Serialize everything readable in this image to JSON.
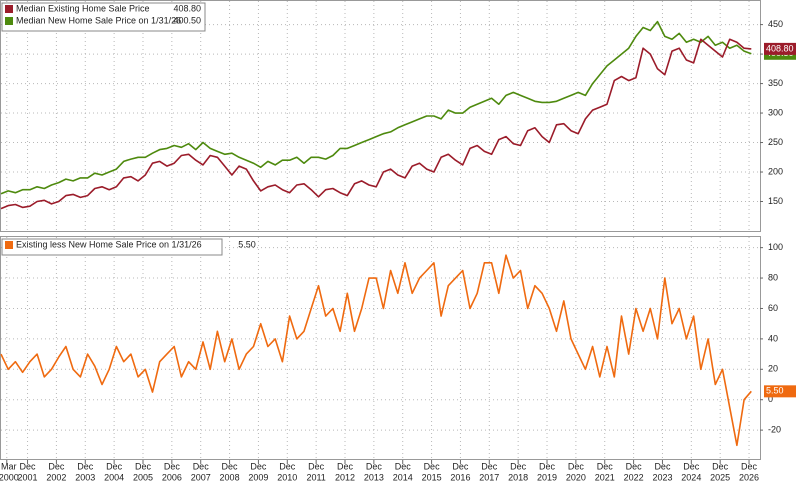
{
  "chart_data": [
    {
      "type": "line",
      "xlim": [
        2000,
        2026.3
      ],
      "ylim": [
        100,
        490
      ],
      "yticks": [
        150,
        200,
        250,
        300,
        350,
        400,
        450
      ],
      "grid": true,
      "x": [
        2000,
        2000.25,
        2000.5,
        2000.75,
        2001,
        2001.25,
        2001.5,
        2001.75,
        2002,
        2002.25,
        2002.5,
        2002.75,
        2003,
        2003.25,
        2003.5,
        2003.75,
        2004,
        2004.25,
        2004.5,
        2004.75,
        2005,
        2005.25,
        2005.5,
        2005.75,
        2006,
        2006.25,
        2006.5,
        2006.75,
        2007,
        2007.25,
        2007.5,
        2007.75,
        2008,
        2008.25,
        2008.5,
        2008.75,
        2009,
        2009.25,
        2009.5,
        2009.75,
        2010,
        2010.25,
        2010.5,
        2010.75,
        2011,
        2011.25,
        2011.5,
        2011.75,
        2012,
        2012.25,
        2012.5,
        2012.75,
        2013,
        2013.25,
        2013.5,
        2013.75,
        2014,
        2014.25,
        2014.5,
        2014.75,
        2015,
        2015.25,
        2015.5,
        2015.75,
        2016,
        2016.25,
        2016.5,
        2016.75,
        2017,
        2017.25,
        2017.5,
        2017.75,
        2018,
        2018.25,
        2018.5,
        2018.75,
        2019,
        2019.25,
        2019.5,
        2019.75,
        2020,
        2020.25,
        2020.5,
        2020.75,
        2021,
        2021.25,
        2021.5,
        2021.75,
        2022,
        2022.25,
        2022.5,
        2022.75,
        2023,
        2023.25,
        2023.5,
        2023.75,
        2024,
        2024.25,
        2024.5,
        2024.75,
        2025,
        2025.25,
        2025.5,
        2025.75,
        2026
      ],
      "series": [
        {
          "name": "Median New Home Sale Price on 1/31/26",
          "last_label": "400.50",
          "color": "#4e8a0e",
          "values": [
            163,
            168,
            165,
            170,
            170,
            175,
            172,
            178,
            182,
            188,
            185,
            190,
            190,
            198,
            195,
            200,
            205,
            218,
            222,
            225,
            225,
            232,
            238,
            240,
            245,
            242,
            248,
            238,
            250,
            240,
            235,
            230,
            232,
            225,
            220,
            215,
            208,
            218,
            212,
            220,
            220,
            225,
            215,
            225,
            225,
            222,
            228,
            240,
            240,
            245,
            250,
            255,
            260,
            265,
            268,
            275,
            280,
            285,
            290,
            295,
            295,
            290,
            305,
            300,
            300,
            310,
            315,
            320,
            325,
            315,
            330,
            335,
            330,
            325,
            320,
            318,
            318,
            320,
            325,
            330,
            335,
            330,
            350,
            365,
            380,
            390,
            400,
            410,
            430,
            445,
            440,
            455,
            430,
            425,
            435,
            420,
            425,
            420,
            430,
            415,
            420,
            410,
            415,
            405,
            400.5
          ]
        },
        {
          "name": "Median Existing Home Sale Price",
          "last_label": "408.80",
          "color": "#9b1c2a",
          "values": [
            138,
            143,
            145,
            140,
            142,
            150,
            152,
            146,
            150,
            160,
            162,
            157,
            160,
            172,
            175,
            170,
            175,
            190,
            192,
            185,
            195,
            215,
            218,
            210,
            215,
            228,
            230,
            220,
            212,
            228,
            225,
            210,
            195,
            210,
            205,
            185,
            168,
            175,
            178,
            170,
            165,
            178,
            180,
            170,
            158,
            170,
            172,
            165,
            160,
            180,
            185,
            178,
            175,
            200,
            205,
            195,
            190,
            210,
            215,
            205,
            200,
            225,
            230,
            220,
            212,
            240,
            245,
            235,
            230,
            255,
            260,
            248,
            245,
            270,
            275,
            260,
            250,
            280,
            282,
            270,
            265,
            290,
            305,
            310,
            315,
            355,
            362,
            355,
            360,
            410,
            400,
            375,
            365,
            405,
            410,
            390,
            385,
            425,
            415,
            405,
            395,
            425,
            420,
            410,
            408.8
          ]
        }
      ]
    },
    {
      "type": "line",
      "xlim": [
        2000,
        2026.3
      ],
      "ylim": [
        -39,
        107
      ],
      "yticks": [
        -20,
        0,
        20,
        40,
        60,
        80,
        100
      ],
      "grid": true,
      "xticks": [
        {
          "value": 2000.2,
          "label": "Mar",
          "year": "2000"
        },
        {
          "value": 2000.92,
          "label": "Dec",
          "year": "2001"
        },
        {
          "value": 2001.92,
          "label": "Dec",
          "year": "2002"
        },
        {
          "value": 2002.92,
          "label": "Dec",
          "year": "2003"
        },
        {
          "value": 2003.92,
          "label": "Dec",
          "year": "2004"
        },
        {
          "value": 2004.92,
          "label": "Dec",
          "year": "2005"
        },
        {
          "value": 2005.92,
          "label": "Dec",
          "year": "2006"
        },
        {
          "value": 2006.92,
          "label": "Dec",
          "year": "2007"
        },
        {
          "value": 2007.92,
          "label": "Dec",
          "year": "2008"
        },
        {
          "value": 2008.92,
          "label": "Dec",
          "year": "2009"
        },
        {
          "value": 2009.92,
          "label": "Dec",
          "year": "2010"
        },
        {
          "value": 2010.92,
          "label": "Dec",
          "year": "2011"
        },
        {
          "value": 2011.92,
          "label": "Dec",
          "year": "2012"
        },
        {
          "value": 2012.92,
          "label": "Dec",
          "year": "2013"
        },
        {
          "value": 2013.92,
          "label": "Dec",
          "year": "2014"
        },
        {
          "value": 2014.92,
          "label": "Dec",
          "year": "2015"
        },
        {
          "value": 2015.92,
          "label": "Dec",
          "year": "2016"
        },
        {
          "value": 2016.92,
          "label": "Dec",
          "year": "2017"
        },
        {
          "value": 2017.92,
          "label": "Dec",
          "year": "2018"
        },
        {
          "value": 2018.92,
          "label": "Dec",
          "year": "2019"
        },
        {
          "value": 2019.92,
          "label": "Dec",
          "year": "2020"
        },
        {
          "value": 2020.92,
          "label": "Dec",
          "year": "2021"
        },
        {
          "value": 2021.92,
          "label": "Dec",
          "year": "2022"
        },
        {
          "value": 2022.92,
          "label": "Dec",
          "year": "2023"
        },
        {
          "value": 2023.92,
          "label": "Dec",
          "year": "2024"
        },
        {
          "value": 2024.92,
          "label": "Dec",
          "year": "2025"
        },
        {
          "value": 2025.92,
          "label": "Dec",
          "year": "2026"
        }
      ],
      "x": [
        2000,
        2000.25,
        2000.5,
        2000.75,
        2001,
        2001.25,
        2001.5,
        2001.75,
        2002,
        2002.25,
        2002.5,
        2002.75,
        2003,
        2003.25,
        2003.5,
        2003.75,
        2004,
        2004.25,
        2004.5,
        2004.75,
        2005,
        2005.25,
        2005.5,
        2005.75,
        2006,
        2006.25,
        2006.5,
        2006.75,
        2007,
        2007.25,
        2007.5,
        2007.75,
        2008,
        2008.25,
        2008.5,
        2008.75,
        2009,
        2009.25,
        2009.5,
        2009.75,
        2010,
        2010.25,
        2010.5,
        2010.75,
        2011,
        2011.25,
        2011.5,
        2011.75,
        2012,
        2012.25,
        2012.5,
        2012.75,
        2013,
        2013.25,
        2013.5,
        2013.75,
        2014,
        2014.25,
        2014.5,
        2014.75,
        2015,
        2015.25,
        2015.5,
        2015.75,
        2016,
        2016.25,
        2016.5,
        2016.75,
        2017,
        2017.25,
        2017.5,
        2017.75,
        2018,
        2018.25,
        2018.5,
        2018.75,
        2019,
        2019.25,
        2019.5,
        2019.75,
        2020,
        2020.25,
        2020.5,
        2020.75,
        2021,
        2021.25,
        2021.5,
        2021.75,
        2022,
        2022.25,
        2022.5,
        2022.75,
        2023,
        2023.25,
        2023.5,
        2023.75,
        2024,
        2024.25,
        2024.5,
        2024.75,
        2025,
        2025.25,
        2025.5,
        2025.75,
        2026
      ],
      "series": [
        {
          "name": "Existing less New Home Sale Price on 1/31/26",
          "last_label": "5.50",
          "color": "#ef6a10",
          "values": [
            30,
            20,
            25,
            18,
            25,
            30,
            15,
            20,
            28,
            35,
            20,
            15,
            30,
            22,
            10,
            20,
            35,
            25,
            30,
            15,
            20,
            5,
            25,
            30,
            35,
            15,
            25,
            20,
            38,
            20,
            45,
            25,
            40,
            20,
            30,
            35,
            50,
            35,
            40,
            25,
            55,
            40,
            45,
            60,
            75,
            55,
            60,
            45,
            70,
            45,
            60,
            80,
            80,
            60,
            85,
            70,
            90,
            70,
            80,
            85,
            90,
            55,
            75,
            80,
            85,
            60,
            70,
            90,
            90,
            70,
            95,
            80,
            85,
            60,
            75,
            70,
            60,
            45,
            65,
            40,
            30,
            20,
            35,
            15,
            35,
            15,
            55,
            30,
            60,
            45,
            60,
            40,
            80,
            50,
            60,
            40,
            55,
            20,
            40,
            10,
            20,
            -5,
            -30,
            0,
            5.5
          ]
        }
      ]
    }
  ]
}
